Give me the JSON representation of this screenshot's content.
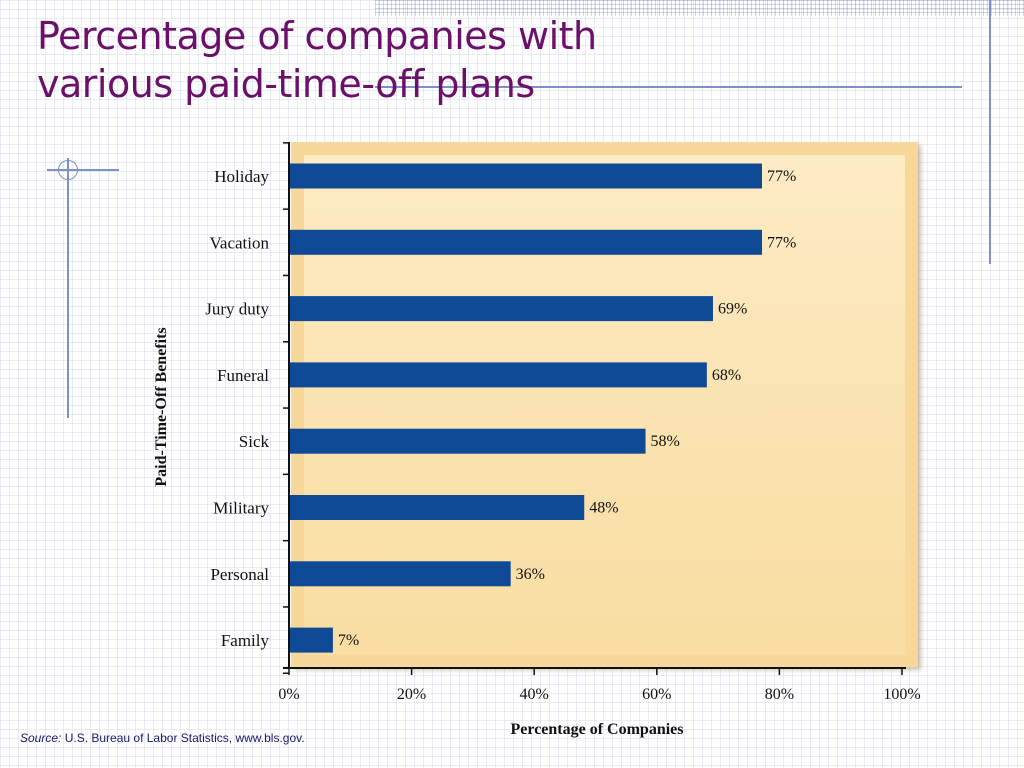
{
  "slide": {
    "title_line1": "Percentage of companies with",
    "title_line2": "various paid-time-off plans"
  },
  "source": {
    "label": "Source:",
    "text": "U.S. Bureau of Labor Statistics, www.bls.gov."
  },
  "colors": {
    "title": "#6b0f6b",
    "bar": "#0f4a96",
    "plot_background": "#fbe3b0",
    "decoration": "#7f8fc8"
  },
  "chart_data": {
    "type": "bar",
    "orientation": "horizontal",
    "categories": [
      "Holiday",
      "Vacation",
      "Jury duty",
      "Funeral",
      "Sick",
      "Military",
      "Personal",
      "Family"
    ],
    "values": [
      77,
      77,
      69,
      68,
      58,
      48,
      36,
      7
    ],
    "data_labels": [
      "77%",
      "77%",
      "69%",
      "68%",
      "58%",
      "48%",
      "36%",
      "7%"
    ],
    "xlabel": "Percentage of Companies",
    "ylabel": "Paid-Time-Off Benefits",
    "xlim": [
      0,
      100
    ],
    "x_ticks": [
      0,
      20,
      40,
      60,
      80,
      100
    ],
    "x_tick_labels": [
      "0%",
      "20%",
      "40%",
      "60%",
      "80%",
      "100%"
    ],
    "grid": false,
    "legend": "none"
  }
}
